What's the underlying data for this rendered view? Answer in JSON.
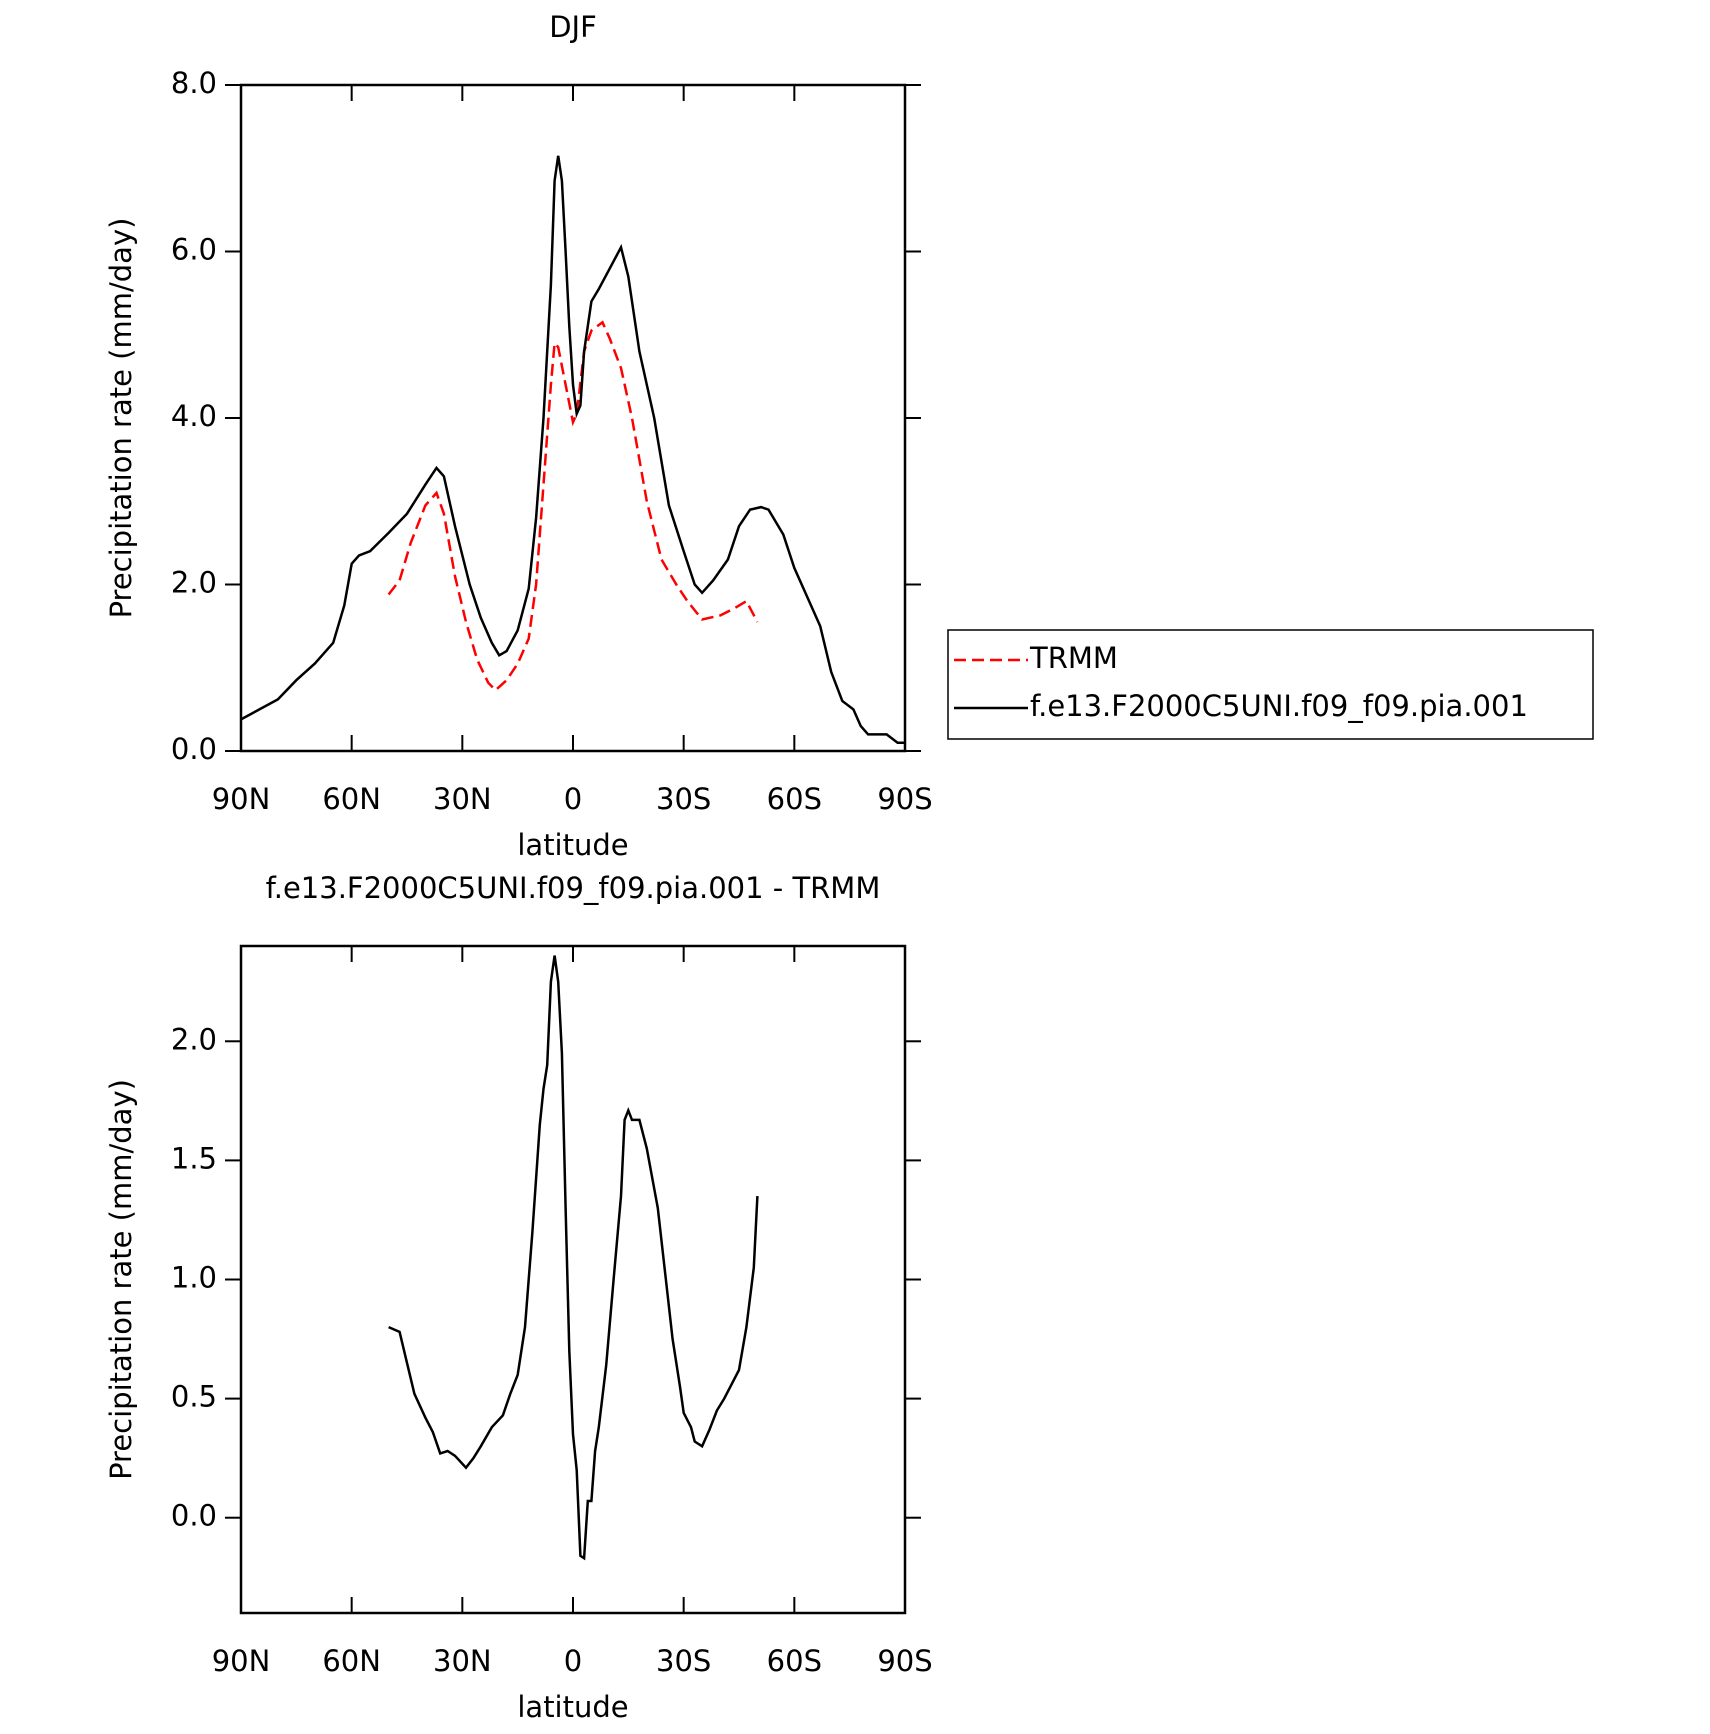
{
  "chart_data": [
    {
      "type": "line",
      "title": "DJF",
      "x_label": "latitude",
      "y_label": "Precipitation rate (mm/day)",
      "xlim": [
        90,
        -90
      ],
      "xticks": [
        {
          "value": 90,
          "label": "90N"
        },
        {
          "value": 60,
          "label": "60N"
        },
        {
          "value": 30,
          "label": "30N"
        },
        0,
        {
          "value": -30,
          "label": "30S"
        },
        {
          "value": -60,
          "label": "60S"
        },
        {
          "value": -90,
          "label": "90S"
        }
      ],
      "ylim": [
        0,
        8
      ],
      "yticks": [
        {
          "value": 0,
          "label": "0.0"
        },
        {
          "value": 2,
          "label": "2.0"
        },
        {
          "value": 4,
          "label": "4.0"
        },
        {
          "value": 6,
          "label": "6.0"
        },
        {
          "value": 8,
          "label": "8.0"
        }
      ],
      "legend": "right",
      "series": [
        {
          "name": "TRMM",
          "color": "#ff0000",
          "dashed": true,
          "x": [
            50,
            47,
            44,
            40,
            37,
            35,
            32,
            29,
            26,
            23,
            21,
            18,
            15,
            12,
            10,
            8,
            6,
            5,
            4,
            2,
            0,
            -1,
            -3,
            -5,
            -8,
            -10,
            -13,
            -16,
            -20,
            -24,
            -28,
            -31,
            -35,
            -40,
            -44,
            -47,
            -50
          ],
          "values": [
            1.88,
            2.05,
            2.5,
            2.95,
            3.1,
            2.85,
            2.1,
            1.55,
            1.1,
            0.82,
            0.73,
            0.85,
            1.05,
            1.35,
            2.0,
            3.2,
            4.4,
            4.9,
            4.85,
            4.4,
            3.95,
            4.05,
            4.8,
            5.05,
            5.15,
            4.95,
            4.6,
            4.0,
            3.0,
            2.3,
            2.0,
            1.8,
            1.58,
            1.63,
            1.72,
            1.8,
            1.55
          ]
        },
        {
          "name": "f.e13.F2000C5UNI.f09_f09.pia.001",
          "color": "#000000",
          "dashed": false,
          "x": [
            90,
            85,
            80,
            75,
            70,
            65,
            62,
            60,
            58,
            55,
            50,
            45,
            40,
            37,
            35,
            32,
            28,
            25,
            22,
            20,
            18,
            15,
            12,
            10,
            8,
            6,
            5,
            4,
            3,
            2,
            1,
            0,
            -1,
            -2,
            -3,
            -5,
            -7,
            -10,
            -13,
            -15,
            -18,
            -22,
            -26,
            -30,
            -33,
            -35,
            -38,
            -42,
            -45,
            -48,
            -51,
            -53,
            -57,
            -60,
            -64,
            -67,
            -70,
            -73,
            -76,
            -78,
            -80,
            -83,
            -85,
            -88,
            -90
          ],
          "values": [
            0.38,
            0.5,
            0.62,
            0.85,
            1.05,
            1.3,
            1.75,
            2.25,
            2.35,
            2.4,
            2.62,
            2.85,
            3.2,
            3.4,
            3.3,
            2.7,
            2.0,
            1.6,
            1.3,
            1.15,
            1.2,
            1.45,
            1.95,
            2.8,
            4.0,
            5.6,
            6.85,
            7.15,
            6.85,
            6.0,
            5.1,
            4.4,
            4.05,
            4.15,
            4.8,
            5.4,
            5.55,
            5.8,
            6.05,
            5.7,
            4.8,
            4.0,
            2.95,
            2.4,
            2.0,
            1.9,
            2.05,
            2.3,
            2.7,
            2.9,
            2.93,
            2.9,
            2.6,
            2.2,
            1.8,
            1.5,
            0.95,
            0.6,
            0.5,
            0.3,
            0.2,
            0.2,
            0.2,
            0.1,
            0.1
          ]
        }
      ]
    },
    {
      "type": "line",
      "title": "f.e13.F2000C5UNI.f09_f09.pia.001 - TRMM",
      "x_label": "latitude",
      "y_label": "Precipitation rate (mm/day)",
      "xlim": [
        90,
        -90
      ],
      "xticks": [
        {
          "value": 90,
          "label": "90N"
        },
        {
          "value": 60,
          "label": "60N"
        },
        {
          "value": 30,
          "label": "30N"
        },
        0,
        {
          "value": -30,
          "label": "30S"
        },
        {
          "value": -60,
          "label": "60S"
        },
        {
          "value": -90,
          "label": "90S"
        }
      ],
      "ylim": [
        -0.4,
        2.4
      ],
      "yticks": [
        {
          "value": 0,
          "label": "0.0"
        },
        {
          "value": 0.5,
          "label": "0.5"
        },
        {
          "value": 1,
          "label": "1.0"
        },
        {
          "value": 1.5,
          "label": "1.5"
        },
        {
          "value": 2,
          "label": "2.0"
        }
      ],
      "color": "#000000",
      "x": [
        50,
        47,
        45,
        43,
        40,
        38,
        36,
        34,
        32,
        29,
        27,
        25,
        22,
        19,
        17,
        15,
        13,
        11,
        9,
        8,
        7,
        6,
        5,
        4,
        3,
        2,
        1,
        0,
        -1,
        -2,
        -3,
        -4,
        -5,
        -6,
        -7,
        -9,
        -11,
        -13,
        -14,
        -15,
        -16,
        -18,
        -20,
        -23,
        -27,
        -29,
        -30,
        -32,
        -33,
        -35,
        -37,
        -39,
        -41,
        -43,
        -45,
        -47,
        -49,
        -50
      ],
      "values": [
        0.8,
        0.78,
        0.65,
        0.52,
        0.42,
        0.36,
        0.27,
        0.28,
        0.26,
        0.21,
        0.25,
        0.3,
        0.38,
        0.43,
        0.52,
        0.6,
        0.8,
        1.2,
        1.65,
        1.8,
        1.9,
        2.25,
        2.36,
        2.25,
        1.95,
        1.3,
        0.7,
        0.35,
        0.2,
        -0.16,
        -0.17,
        0.07,
        0.07,
        0.28,
        0.38,
        0.64,
        1.0,
        1.35,
        1.67,
        1.71,
        1.67,
        1.67,
        1.55,
        1.3,
        0.75,
        0.55,
        0.44,
        0.38,
        0.32,
        0.3,
        0.37,
        0.45,
        0.5,
        0.56,
        0.62,
        0.8,
        1.05,
        1.35
      ]
    }
  ]
}
